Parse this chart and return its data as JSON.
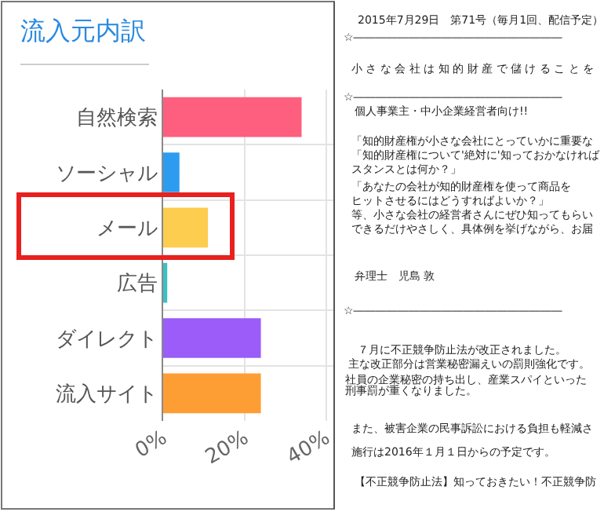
{
  "chart_data": {
    "type": "bar",
    "orientation": "horizontal",
    "title": "流入元内訳",
    "categories": [
      "自然検索",
      "ソーシャル",
      "メール",
      "広告",
      "ダイレクト",
      "流入サイト"
    ],
    "values": [
      34,
      4,
      11,
      1,
      24,
      24
    ],
    "colors": [
      "#fe5f7e",
      "#2d9cf0",
      "#fdcd4f",
      "#3cc0c4",
      "#9b5cf9",
      "#fd9e35"
    ],
    "xlim": [
      0,
      42
    ],
    "xticks": [
      {
        "value": 0,
        "label": "0%"
      },
      {
        "value": 20,
        "label": "20%"
      },
      {
        "value": 40,
        "label": "40%"
      }
    ],
    "grid": true,
    "annotations": [
      "2015年7月29日　第71号（毎月1回、配信予定）",
      "☆―――――――――――――――――――",
      "小 さ な 会 社 は 知 的 財 産 で 儲 け る こ と を",
      "☆―――――――――――――――――――",
      "個人事業主・中小企業経営者向け!!",
      "「知的財産権が小さな会社にとっていかに重要な",
      "「知的財産権について'絶対に'知っておかなければ",
      "スタンスとは何か？」",
      "「あなたの会社が知的財産権を使って商品を",
      "ヒットさせるにはどうすればよいか？」",
      "等、小さな会社の経営者さんにぜひ知ってもらい",
      "できるだけやさしく、具体例を挙げながら、お届",
      "弁理士　児島 敦",
      "☆―――――――――――――――――――",
      "７月に不正競争防止法が改正されました。",
      "主な改正部分は営業秘密漏えいの罰則強化です。",
      "社員の企業秘密の持ち出し、産業スパイといった",
      "刑事罰が重くなりました。",
      "また、被害企業の民事訴訟における負担も軽減さ",
      "施行は2016年１月１日からの予定です。",
      "【不正競争防止法】知っておきたい！不正競争防"
    ]
  }
}
